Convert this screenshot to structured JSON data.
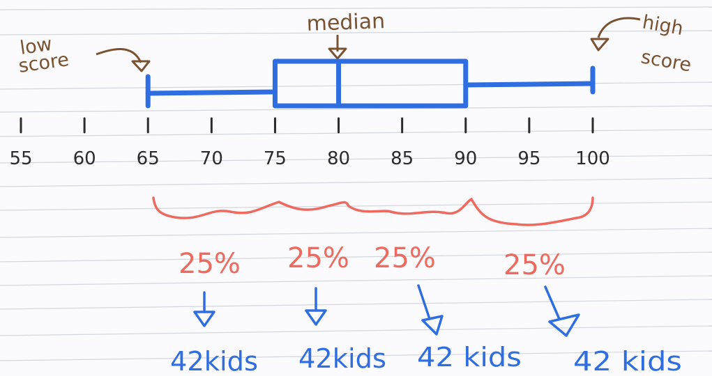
{
  "annotations": {
    "low_score": [
      "low",
      "score"
    ],
    "median": "median",
    "high_score": [
      "high",
      "score"
    ]
  },
  "axis": {
    "ticks": [
      "55",
      "60",
      "65",
      "70",
      "75",
      "80",
      "85",
      "90",
      "95",
      "100"
    ]
  },
  "box_plot": {
    "min": 65,
    "q1": 75,
    "median": 80,
    "q3": 90,
    "max": 100,
    "color": "#2f6ee0"
  },
  "quartile_groups": [
    {
      "percent": "25%",
      "count": "42kids"
    },
    {
      "percent": "25%",
      "count": "42kids"
    },
    {
      "percent": "25%",
      "count": "42 kids"
    },
    {
      "percent": "25%",
      "count": "42 kids"
    }
  ],
  "colors": {
    "annotation": "#7a5230",
    "box": "#2f6ee0",
    "brace": "#ef6a5e",
    "kids": "#2f6ee0",
    "axis_text": "#2b2b2b",
    "paper_line": "#cfd3dc"
  }
}
